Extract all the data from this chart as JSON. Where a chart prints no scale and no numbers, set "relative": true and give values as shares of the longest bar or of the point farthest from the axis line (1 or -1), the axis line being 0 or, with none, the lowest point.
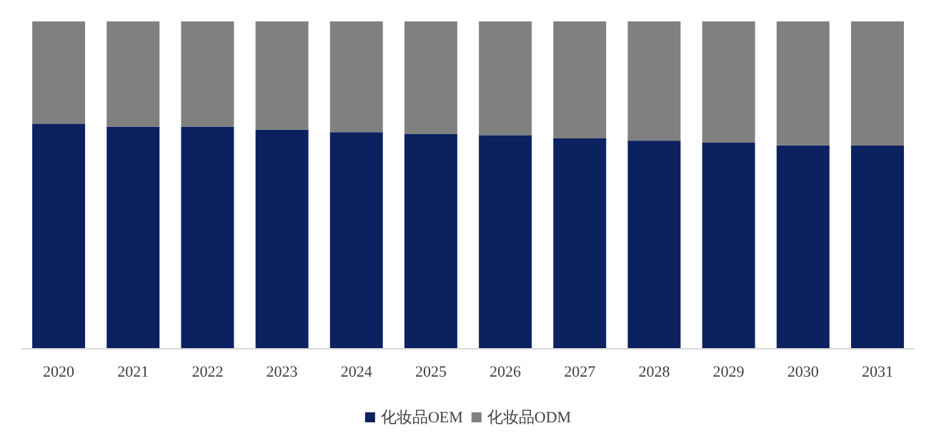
{
  "chart_data": {
    "type": "bar",
    "stacked": true,
    "relative": true,
    "legend": "bottom",
    "categories": [
      "2020",
      "2021",
      "2022",
      "2023",
      "2024",
      "2025",
      "2026",
      "2027",
      "2028",
      "2029",
      "2030",
      "2031"
    ],
    "series": [
      {
        "name": "化妆品OEM",
        "color": "#0b2160",
        "values": [
          0.687,
          0.678,
          0.678,
          0.669,
          0.661,
          0.655,
          0.652,
          0.642,
          0.635,
          0.629,
          0.621,
          0.62
        ]
      },
      {
        "name": "化妆品ODM",
        "color": "#808080",
        "values": [
          0.313,
          0.322,
          0.322,
          0.331,
          0.339,
          0.345,
          0.348,
          0.358,
          0.365,
          0.371,
          0.379,
          0.38
        ]
      }
    ]
  }
}
